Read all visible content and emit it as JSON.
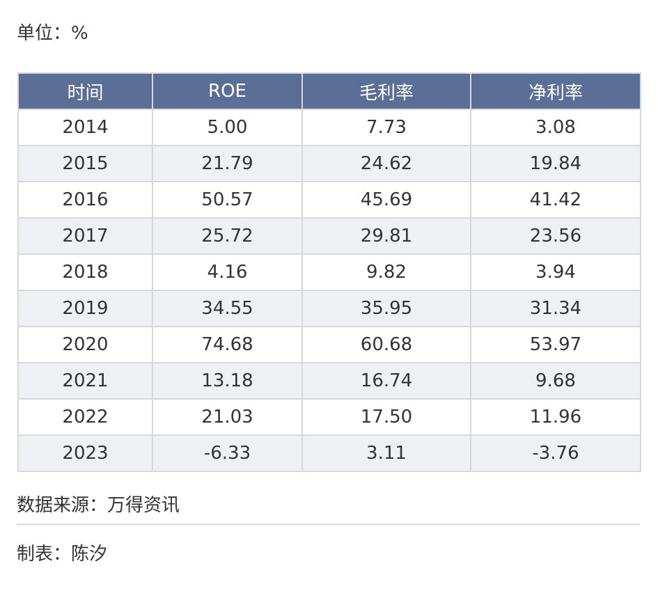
{
  "header": {
    "unit": "单位：%"
  },
  "table": {
    "columns": [
      "时间",
      "ROE",
      "毛利率",
      "净利率"
    ],
    "rows": [
      [
        "2014",
        "5.00",
        "7.73",
        "3.08"
      ],
      [
        "2015",
        "21.79",
        "24.62",
        "19.84"
      ],
      [
        "2016",
        "50.57",
        "45.69",
        "41.42"
      ],
      [
        "2017",
        "25.72",
        "29.81",
        "23.56"
      ],
      [
        "2018",
        "4.16",
        "9.82",
        "3.94"
      ],
      [
        "2019",
        "34.55",
        "35.95",
        "31.34"
      ],
      [
        "2020",
        "74.68",
        "60.68",
        "53.97"
      ],
      [
        "2021",
        "13.18",
        "16.74",
        "9.68"
      ],
      [
        "2022",
        "21.03",
        "17.50",
        "11.96"
      ],
      [
        "2023",
        "-6.33",
        "3.11",
        "-3.76"
      ]
    ]
  },
  "footer": {
    "source": "数据来源：万得资讯",
    "author": "制表：陈汐"
  },
  "colors": {
    "header_bg": "#5a6e96",
    "row_alt_bg": "#eef0f4",
    "border": "#d6d8dc"
  }
}
